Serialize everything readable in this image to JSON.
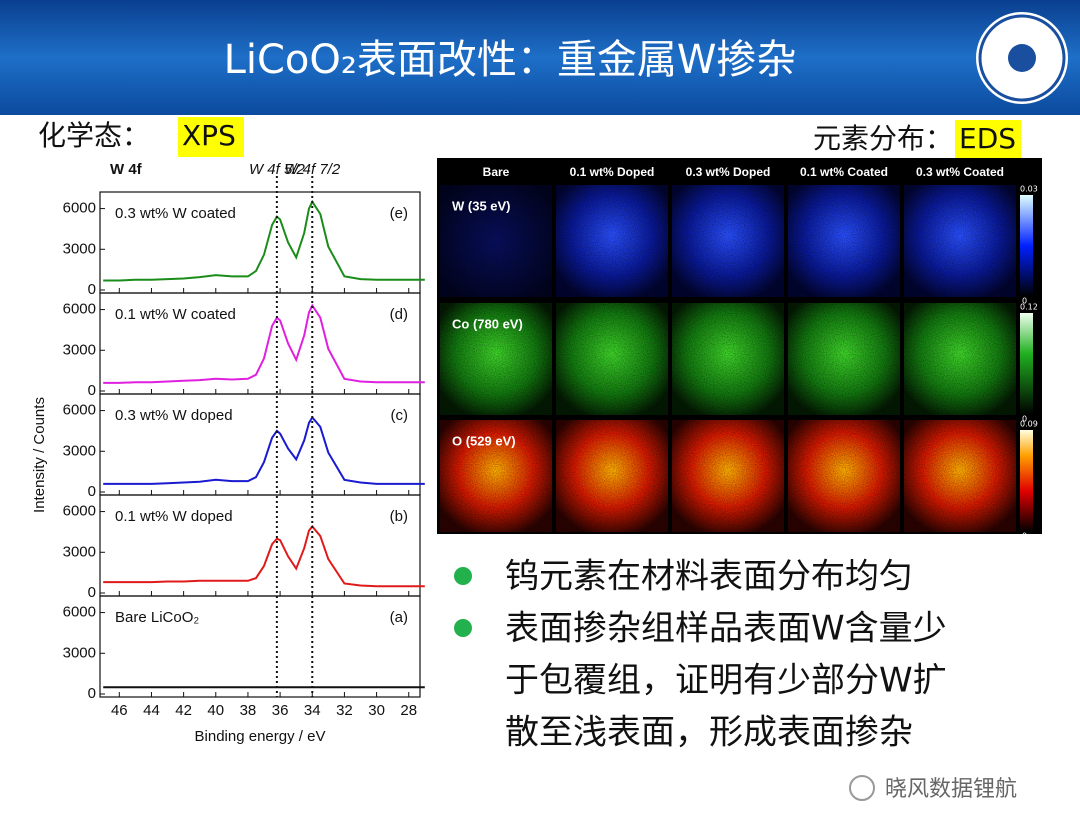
{
  "header": {
    "title": "LiCoO₂表面改性：重金属W掺杂"
  },
  "left_heading": {
    "prefix": "化学态：",
    "highlight": "XPS"
  },
  "right_heading": {
    "prefix": "元素分布：",
    "highlight": "EDS"
  },
  "chart_data": {
    "type": "line",
    "top_label": "W 4f",
    "xlabel": "Binding energy / eV",
    "ylabel": "Intensity / Counts",
    "x": [
      47,
      46,
      45,
      44,
      43,
      42,
      41,
      40,
      39,
      38,
      37.5,
      37,
      36.5,
      36.2,
      36,
      35.5,
      35,
      34.5,
      34.2,
      34,
      33.5,
      33,
      32,
      31,
      30,
      29,
      28,
      27
    ],
    "xlim": [
      47.2,
      27.3
    ],
    "xticks": [
      46,
      44,
      42,
      40,
      38,
      36,
      34,
      32,
      30,
      28
    ],
    "ylim": [
      0,
      7000
    ],
    "yticks": [
      0,
      3000,
      6000
    ],
    "ref_lines": [
      {
        "value": 36.2,
        "label": "W 4f 5/2"
      },
      {
        "value": 34.0,
        "label": "W 4f 7/2"
      }
    ],
    "series": [
      {
        "name": "0.3 wt% W coated",
        "panel_label": "(e)",
        "color": "#1a8c1a",
        "values": [
          700,
          700,
          750,
          750,
          800,
          850,
          950,
          1100,
          1000,
          1000,
          1400,
          2600,
          4800,
          5400,
          5200,
          3500,
          2400,
          4200,
          6000,
          6500,
          5600,
          3200,
          1000,
          800,
          750,
          750,
          750,
          750
        ]
      },
      {
        "name": "0.1 wt% W coated",
        "panel_label": "(d)",
        "color": "#e020e0",
        "values": [
          600,
          600,
          650,
          650,
          700,
          750,
          800,
          900,
          850,
          900,
          1200,
          2400,
          4800,
          5400,
          5200,
          3500,
          2300,
          4100,
          5800,
          6300,
          5400,
          3100,
          900,
          700,
          650,
          650,
          650,
          650
        ]
      },
      {
        "name": "0.3 wt% W doped",
        "panel_label": "(c)",
        "color": "#1a1ad0",
        "values": [
          600,
          600,
          600,
          600,
          650,
          700,
          750,
          900,
          800,
          800,
          1100,
          2200,
          4000,
          4500,
          4300,
          3200,
          2400,
          3800,
          5100,
          5500,
          4800,
          2900,
          900,
          700,
          600,
          600,
          600,
          600
        ]
      },
      {
        "name": "0.1 wt% W doped",
        "panel_label": "(b)",
        "color": "#e01a1a",
        "values": [
          800,
          800,
          800,
          800,
          850,
          850,
          900,
          900,
          900,
          900,
          1100,
          2000,
          3600,
          4000,
          3900,
          2700,
          1800,
          3300,
          4600,
          4900,
          4200,
          2500,
          700,
          550,
          500,
          500,
          500,
          500
        ]
      },
      {
        "name": "Bare LiCoO₂",
        "panel_label": "(a)",
        "color": "#111111",
        "values": [
          500,
          500,
          500,
          500,
          500,
          500,
          500,
          500,
          500,
          500,
          500,
          500,
          500,
          500,
          500,
          500,
          500,
          500,
          500,
          500,
          500,
          500,
          500,
          500,
          500,
          500,
          500,
          500
        ]
      }
    ]
  },
  "eds": {
    "columns": [
      "Bare",
      "0.1 wt% Doped",
      "0.3 wt% Doped",
      "0.1 wt% Coated",
      "0.3 wt% Coated"
    ],
    "rows": [
      {
        "label": "W (35 eV)",
        "max": "0.03",
        "min": "0"
      },
      {
        "label": "Co (780 eV)",
        "max": "0.12",
        "min": "0"
      },
      {
        "label": "O (529 eV)",
        "max": "0.09",
        "min": "0"
      }
    ]
  },
  "bullets": [
    [
      "钨元素在材料表面分布均匀"
    ],
    [
      "表面掺杂组样品表面W含量少",
      "于包覆组，证明有少部分W扩",
      "散至浅表面，形成表面掺杂"
    ]
  ],
  "watermark": "晓风数据锂航"
}
